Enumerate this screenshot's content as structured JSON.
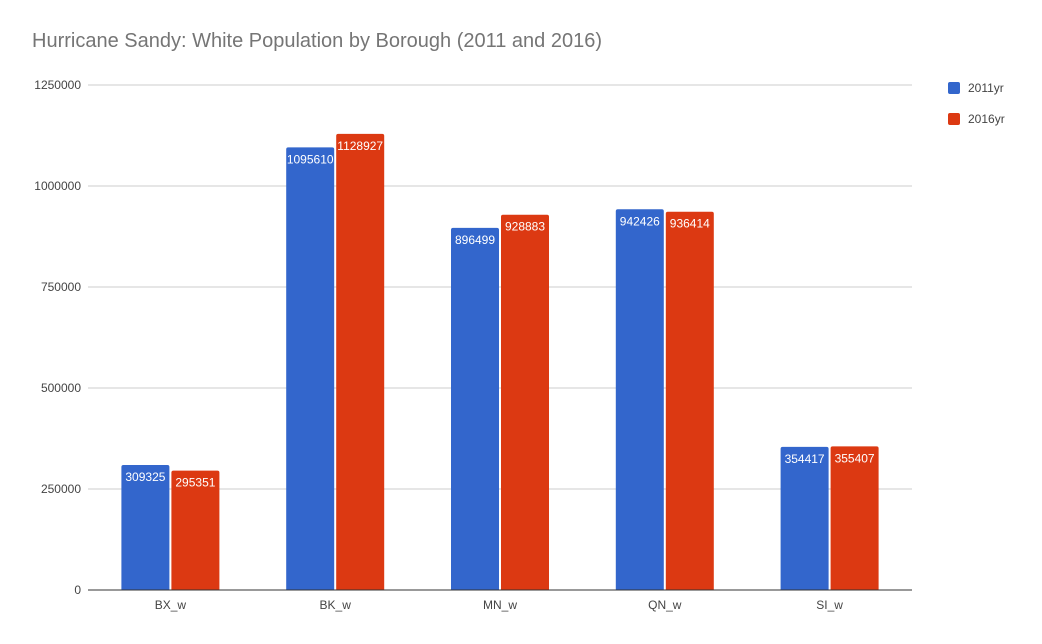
{
  "chart_data": {
    "type": "bar",
    "title": "Hurricane Sandy: White Population by Borough (2011 and 2016)",
    "xlabel": "",
    "ylabel": "",
    "categories": [
      "BX_w",
      "BK_w",
      "MN_w",
      "QN_w",
      "SI_w"
    ],
    "series": [
      {
        "name": "2011yr",
        "color": "#3366cc",
        "values": [
          309325,
          1095610,
          896499,
          942426,
          354417
        ]
      },
      {
        "name": "2016yr",
        "color": "#dc3912",
        "values": [
          295351,
          1128927,
          928883,
          936414,
          355407
        ]
      }
    ],
    "ylim": [
      0,
      1250000
    ],
    "yticks": [
      0,
      250000,
      500000,
      750000,
      1000000,
      1250000
    ],
    "grid": true,
    "legend_position": "right"
  }
}
